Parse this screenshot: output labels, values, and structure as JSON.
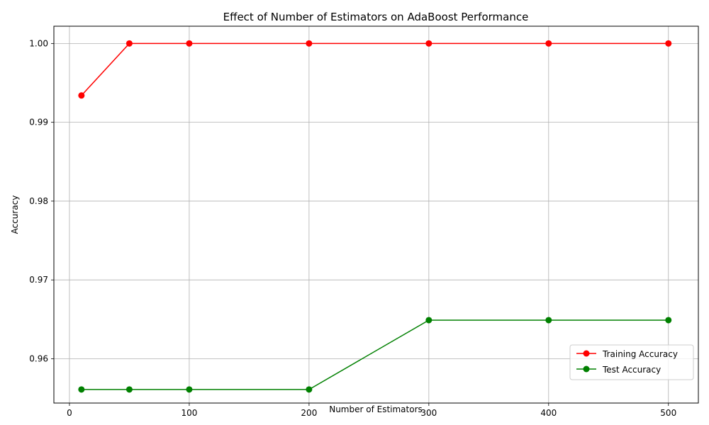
{
  "chart_data": {
    "type": "line",
    "title": "Effect of Number of Estimators on AdaBoost Performance",
    "xlabel": "Number of Estimators",
    "ylabel": "Accuracy",
    "x": [
      10,
      50,
      100,
      200,
      300,
      400,
      500
    ],
    "xlim": [
      -13,
      525
    ],
    "ylim": [
      0.95438,
      1.00219
    ],
    "xticks": [
      0,
      100,
      200,
      300,
      400,
      500
    ],
    "xtick_labels": [
      "0",
      "100",
      "200",
      "300",
      "400",
      "500"
    ],
    "yticks": [
      0.96,
      0.97,
      0.98,
      0.99,
      1.0
    ],
    "ytick_labels": [
      "0.96",
      "0.97",
      "0.98",
      "0.99",
      "1.00"
    ],
    "grid": true,
    "legend_position": "lower-right",
    "series": [
      {
        "name": "Training Accuracy",
        "color": "#ff0000",
        "marker": "circle",
        "values": [
          0.9934,
          1.0,
          1.0,
          1.0,
          1.0,
          1.0,
          1.0
        ]
      },
      {
        "name": "Test Accuracy",
        "color": "#008000",
        "marker": "circle",
        "values": [
          0.9561,
          0.9561,
          0.9561,
          0.9561,
          0.9649,
          0.9649,
          0.9649
        ]
      }
    ]
  }
}
